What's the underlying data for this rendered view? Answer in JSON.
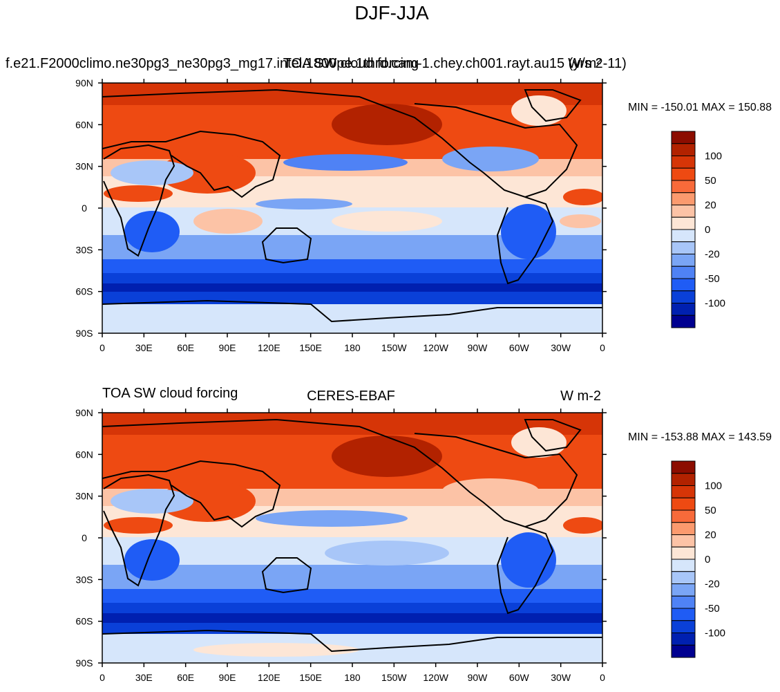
{
  "figure": {
    "title": "DJF-JJA"
  },
  "panels": [
    {
      "left_title": "f.e21.F2000climo.ne30pg3_ne30pg3_mg17.intel.1800pe.1thrd.cam-1.chey.ch001.rayt.au15 (yrs 2-11)",
      "center_title": "TOA SW cloud forcing",
      "right_title": "W/m²",
      "minmax": "MIN = -150.01 MAX = 150.88",
      "xticks": [
        "0",
        "30E",
        "60E",
        "90E",
        "120E",
        "150E",
        "180",
        "150W",
        "120W",
        "90W",
        "60W",
        "30W",
        "0"
      ],
      "yticks": [
        "90N",
        "60N",
        "30N",
        "0",
        "30S",
        "60S",
        "90S"
      ],
      "colorbar_labels": [
        "100",
        "50",
        "20",
        "0",
        "-20",
        "-50",
        "-100"
      ]
    },
    {
      "left_title": "TOA SW cloud forcing",
      "center_title": "CERES-EBAF",
      "right_title": "W m-2",
      "minmax": "MIN = -153.88 MAX = 143.59",
      "xticks": [
        "0",
        "30E",
        "60E",
        "90E",
        "120E",
        "150E",
        "180",
        "150W",
        "120W",
        "90W",
        "60W",
        "30W",
        "0"
      ],
      "yticks": [
        "90N",
        "60N",
        "30N",
        "0",
        "30S",
        "60S",
        "90S"
      ],
      "colorbar_labels": [
        "100",
        "50",
        "20",
        "0",
        "-20",
        "-50",
        "-100"
      ]
    }
  ],
  "map_data": {
    "projection": "equirectangular",
    "lon_range": [
      0,
      360
    ],
    "lat_range": [
      -90,
      90
    ],
    "field": "TOA SW cloud forcing difference DJF-JJA",
    "colorbar_colors": [
      "#000090",
      "#0020b0",
      "#0a40d8",
      "#1f5cf5",
      "#4f82f5",
      "#7aa5f5",
      "#a8c6f8",
      "#d6e6fb",
      "#fde6d6",
      "#fcc3a6",
      "#fb9a6e",
      "#f86a3a",
      "#ee4a12",
      "#d63507",
      "#b22200",
      "#8c0d00"
    ]
  }
}
